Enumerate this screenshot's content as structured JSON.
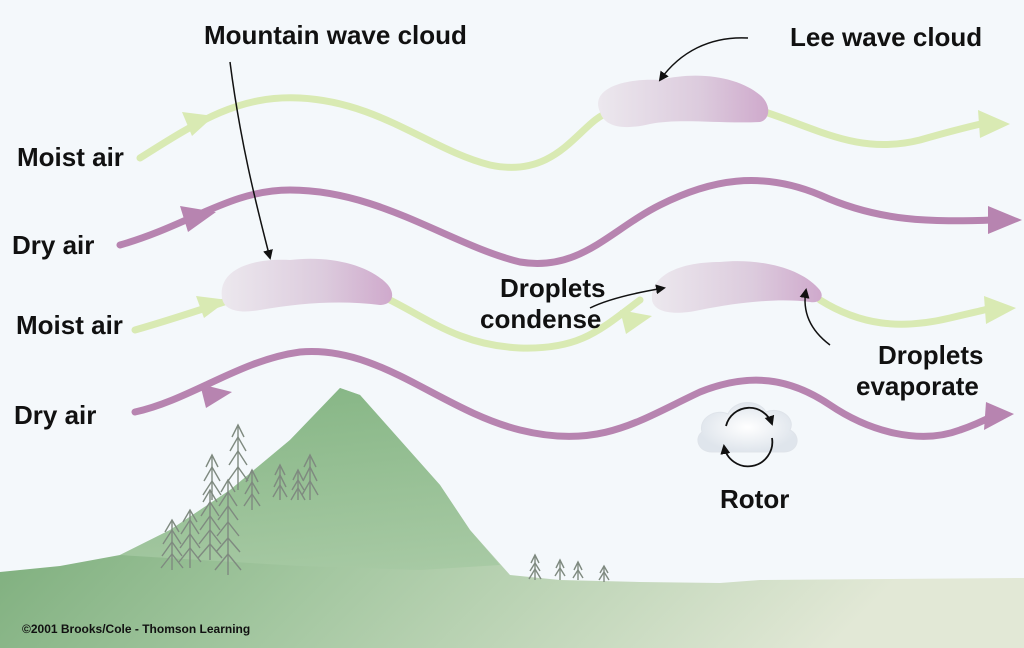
{
  "diagram": {
    "labels": {
      "mountain_wave_cloud": "Mountain wave cloud",
      "lee_wave_cloud": "Lee wave cloud",
      "moist_air_upper": "Moist air",
      "dry_air_upper": "Dry air",
      "moist_air_lower": "Moist air",
      "dry_air_lower": "Dry air",
      "droplets_condense_line1": "Droplets",
      "droplets_condense_line2": "condense",
      "droplets_evaporate_line1": "Droplets",
      "droplets_evaporate_line2": "evaporate",
      "rotor": "Rotor"
    },
    "copyright": "©2001 Brooks/Cole - Thomson Learning",
    "colors": {
      "background": "#f4f8fb",
      "moist_air_stream": "#d9eab3",
      "dry_air_stream": "#b784b0",
      "cloud_fill": "#e4d6e4",
      "mountain": "#8fba8c",
      "ground": "#a6c8a2",
      "text": "#111111"
    }
  }
}
